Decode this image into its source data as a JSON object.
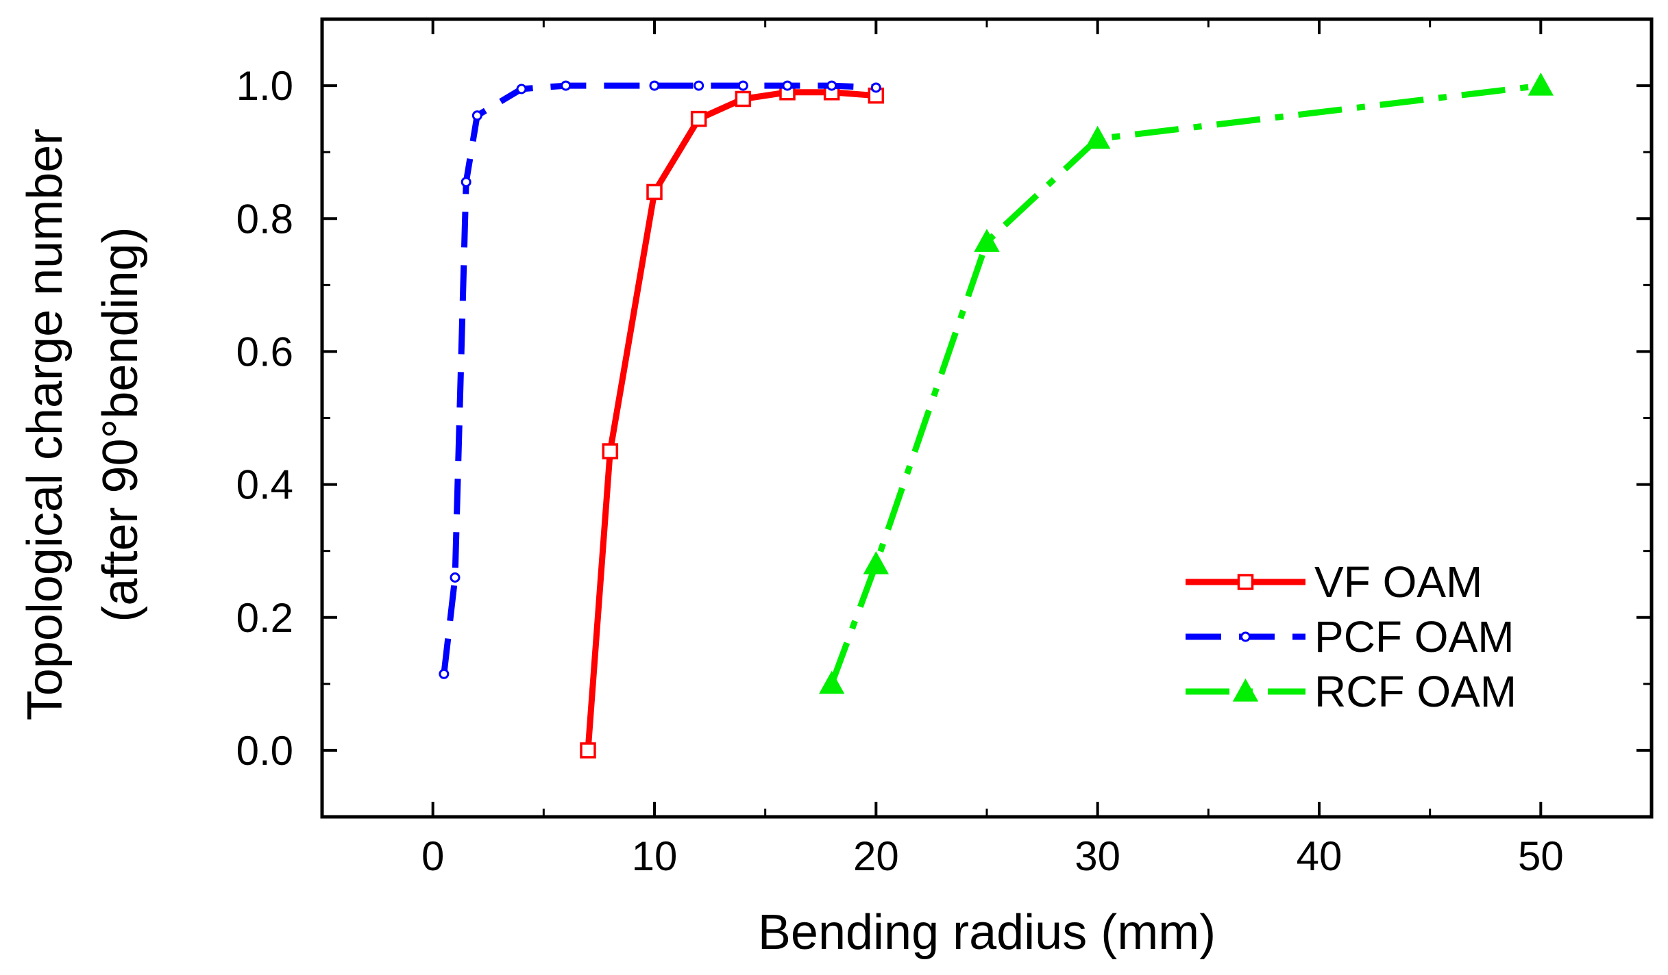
{
  "chart_data": {
    "type": "line",
    "title": "",
    "xlabel": "Bending radius (mm)",
    "ylabel_lines": [
      "Topological charge number",
      "(after 90°bending)"
    ],
    "xlim": [
      -5,
      55
    ],
    "ylim": [
      -0.1,
      1.1
    ],
    "xticks": [
      0,
      10,
      20,
      30,
      40,
      50
    ],
    "yticks": [
      0.0,
      0.2,
      0.4,
      0.6,
      0.8,
      1.0
    ],
    "xtick_labels": [
      "0",
      "10",
      "20",
      "30",
      "40",
      "50"
    ],
    "ytick_labels": [
      "0.0",
      "0.2",
      "0.4",
      "0.6",
      "0.8",
      "1.0"
    ],
    "grid": false,
    "legend_position": "bottom-right",
    "series": [
      {
        "name": "VF OAM",
        "color": "#ff0000",
        "line_style": "solid",
        "marker": "square",
        "x": [
          7,
          8,
          10,
          12,
          14,
          16,
          18,
          20
        ],
        "y": [
          0.0,
          0.45,
          0.84,
          0.95,
          0.98,
          0.99,
          0.99,
          0.985
        ]
      },
      {
        "name": "PCF OAM",
        "color": "#0000ff",
        "line_style": "dashed",
        "marker": "circle",
        "x": [
          0.5,
          1,
          1.5,
          2,
          4,
          6,
          10,
          12,
          14,
          16,
          18,
          20
        ],
        "y": [
          0.115,
          0.26,
          0.855,
          0.955,
          0.995,
          1.0,
          1.0,
          1.0,
          1.0,
          1.0,
          1.0,
          0.997
        ]
      },
      {
        "name": "RCF OAM",
        "color": "#00ee00",
        "line_style": "dashdot",
        "marker": "triangle",
        "x": [
          18,
          20,
          25,
          30,
          50
        ],
        "y": [
          0.1,
          0.28,
          0.765,
          0.92,
          1.0
        ]
      }
    ]
  }
}
